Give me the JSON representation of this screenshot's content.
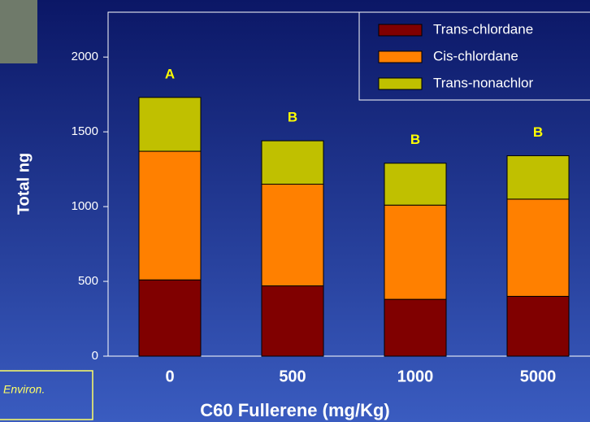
{
  "chart_data": {
    "type": "stacked_bar",
    "xlabel": "C60 Fullerene (mg/Kg)",
    "ylabel": "Total ng",
    "categories": [
      "0",
      "500",
      "1000",
      "5000"
    ],
    "series": [
      {
        "name": "Trans-chlordane",
        "color": "#800000",
        "values": [
          510,
          470,
          380,
          400
        ]
      },
      {
        "name": "Cis-chlordane",
        "color": "#ff8000",
        "values": [
          860,
          680,
          630,
          650
        ]
      },
      {
        "name": "Trans-nonachlor",
        "color": "#c0c000",
        "values": [
          360,
          290,
          280,
          290
        ]
      }
    ],
    "ylim": [
      0,
      2300
    ],
    "yticks": [
      0,
      500,
      1000,
      1500,
      2000
    ],
    "legend": "upper right",
    "annotations": [
      {
        "text": "A",
        "category": 0
      },
      {
        "text": "B",
        "category": 1
      },
      {
        "text": "B",
        "category": 2
      },
      {
        "text": "B",
        "category": 3
      }
    ]
  },
  "citation": "Environ."
}
